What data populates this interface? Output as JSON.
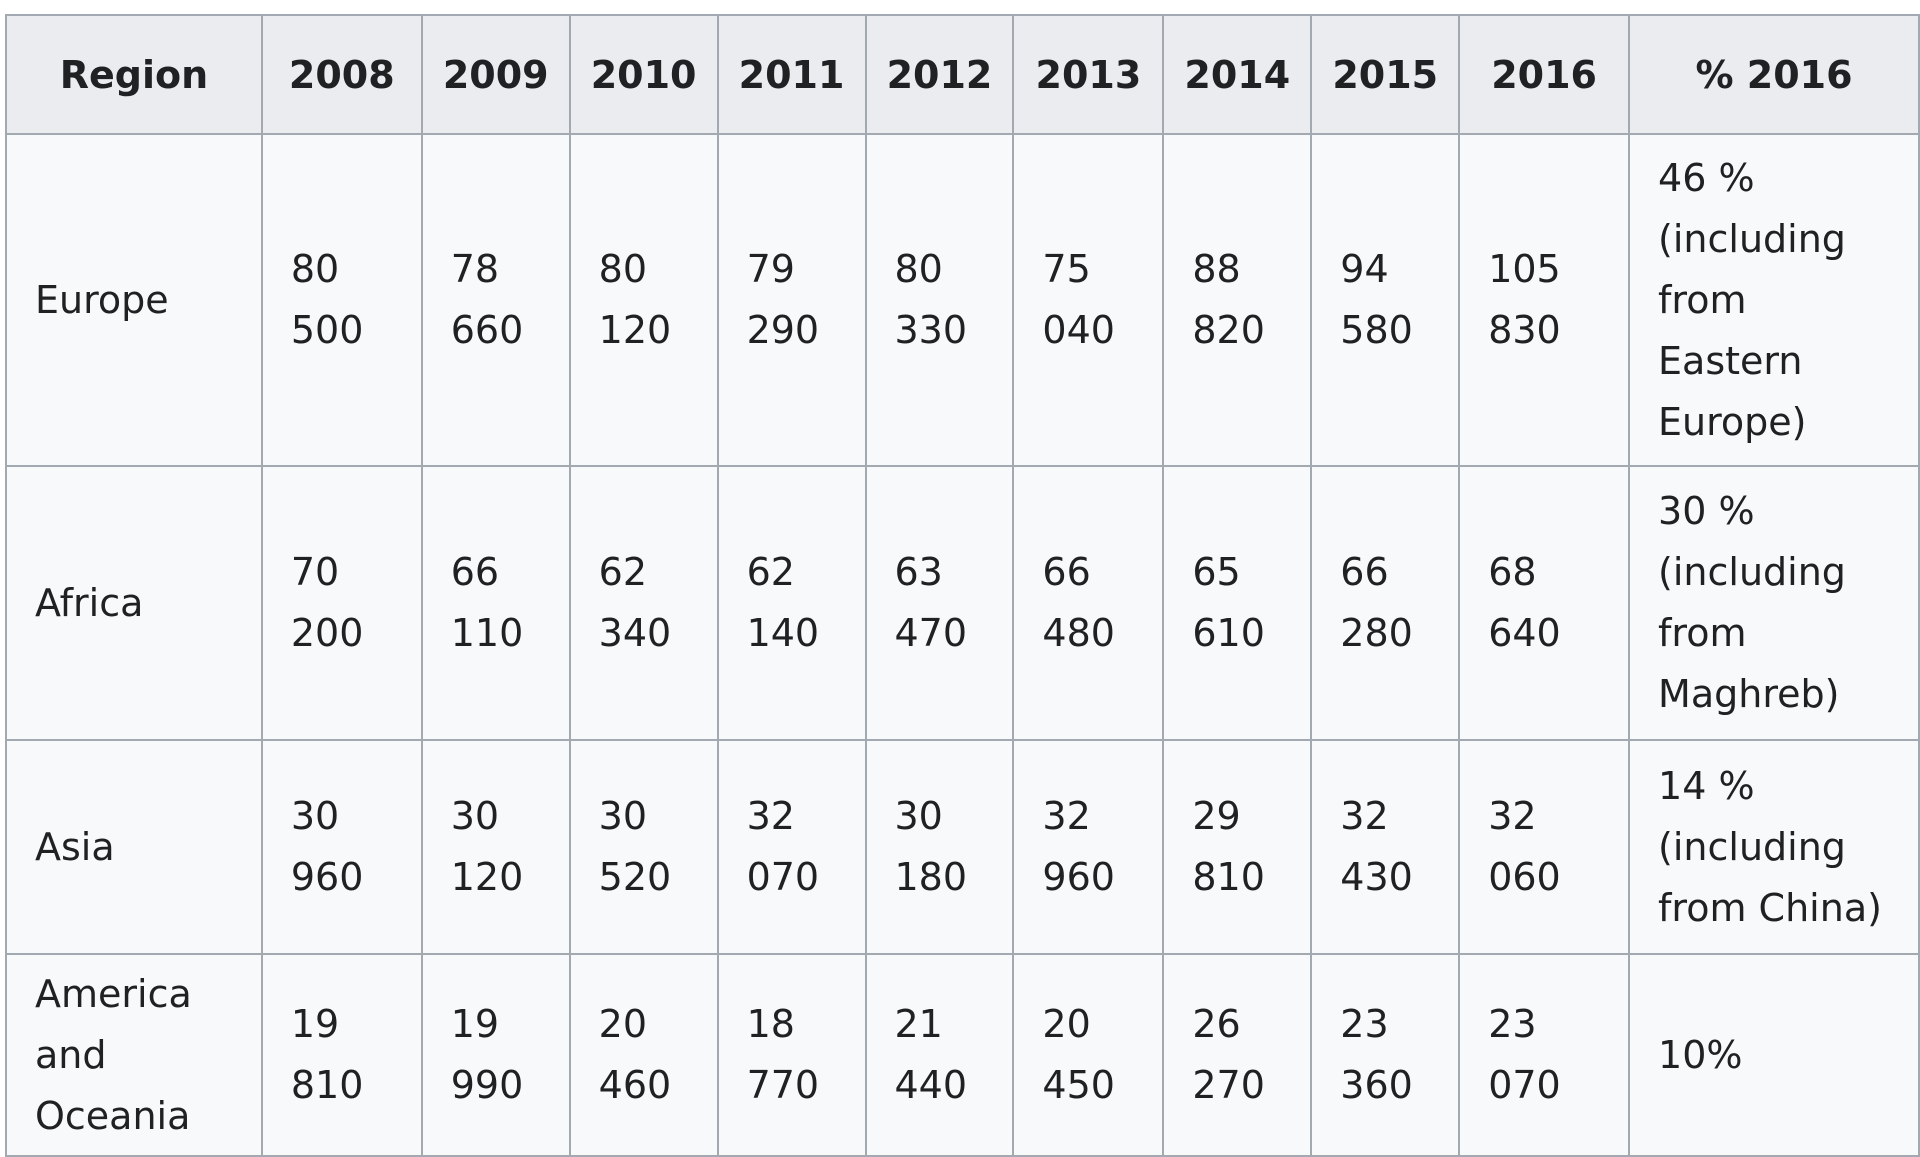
{
  "table": {
    "headers": [
      "Region",
      "2008",
      "2009",
      "2010",
      "2011",
      "2012",
      "2013",
      "2014",
      "2015",
      "2016",
      "% 2016"
    ],
    "rows": [
      {
        "region": "Europe",
        "values": [
          "80\n500",
          "78\n660",
          "80\n120",
          "79\n290",
          "80\n330",
          "75\n040",
          "88\n820",
          "94\n580",
          "105\n830"
        ],
        "share": "46 %\n(including\nfrom\nEastern\nEurope)"
      },
      {
        "region": "Africa",
        "values": [
          "70\n200",
          "66\n110",
          "62\n340",
          "62\n140",
          "63\n470",
          "66\n480",
          "65\n610",
          "66\n280",
          "68\n640"
        ],
        "share": "30 %\n(including\nfrom\nMaghreb)"
      },
      {
        "region": "Asia",
        "values": [
          "30\n960",
          "30\n120",
          "30\n520",
          "32\n070",
          "30\n180",
          "32\n960",
          "29\n810",
          "32\n430",
          "32\n060"
        ],
        "share": "14 %\n(including\nfrom China)"
      },
      {
        "region": "America\nand\nOceania",
        "values": [
          "19\n810",
          "19\n990",
          "20\n460",
          "18\n770",
          "21\n440",
          "20\n450",
          "26\n270",
          "23\n360",
          "23\n070"
        ],
        "share": "10%"
      }
    ]
  },
  "colors": {
    "header_bg": "#eaecf0",
    "cell_bg": "#f8f9fa",
    "border": "#a2a9b1",
    "text": "#202122"
  }
}
